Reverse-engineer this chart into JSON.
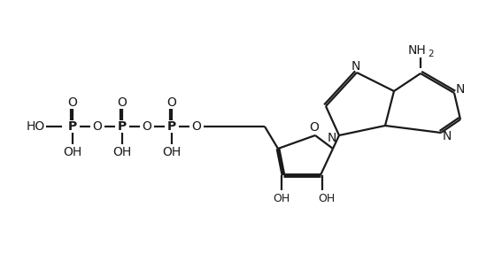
{
  "bg_color": "#ffffff",
  "line_color": "#1a1a1a",
  "lw": 1.6,
  "lw_bold": 3.5,
  "fs": 10,
  "fs_sub": 7.5,
  "figsize": [
    5.67,
    2.95
  ],
  "dpi": 100,
  "xlim": [
    0,
    567
  ],
  "ylim": [
    0,
    295
  ]
}
